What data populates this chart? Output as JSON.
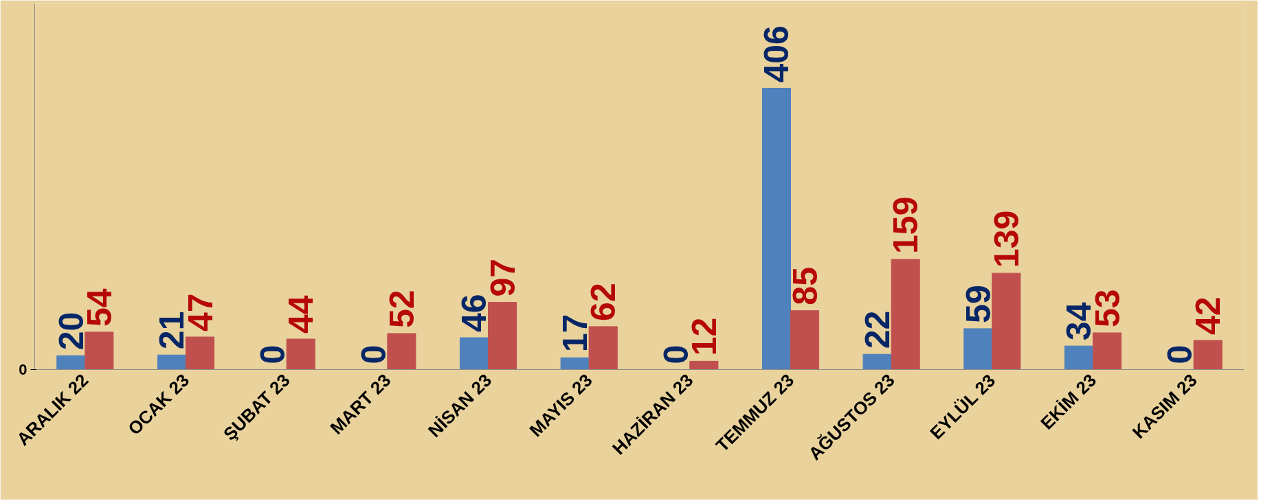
{
  "chart_data": {
    "type": "bar",
    "categories": [
      "ARALIK 22",
      "OCAK 23",
      "ŞUBAT 23",
      "MART 23",
      "NİSAN 23",
      "MAYIS 23",
      "HAZİRAN 23",
      "TEMMUZ 23",
      "AĞUSTOS 23",
      "EYLÜL 23",
      "EKİM 23",
      "KASIM 23"
    ],
    "series": [
      {
        "color": "#4f81bd",
        "values": [
          20,
          21,
          0,
          0,
          46,
          17,
          0,
          406,
          22,
          59,
          34,
          0
        ]
      },
      {
        "color": "#c0504d",
        "values": [
          54,
          47,
          44,
          52,
          97,
          62,
          12,
          85,
          159,
          139,
          53,
          42
        ]
      }
    ],
    "annotations": [
      "0"
    ],
    "data_labels": true
  }
}
